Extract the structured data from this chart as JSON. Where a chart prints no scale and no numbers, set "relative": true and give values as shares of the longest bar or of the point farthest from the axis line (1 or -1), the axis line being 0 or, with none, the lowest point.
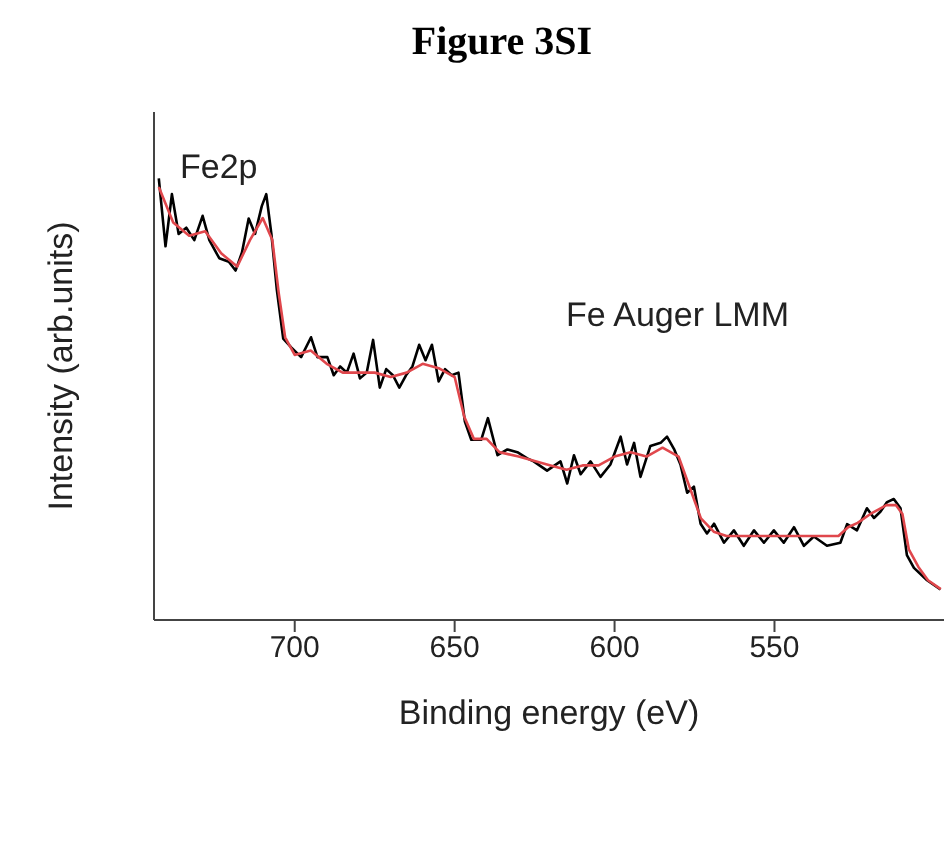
{
  "chart_data": {
    "type": "line",
    "title": "Figure 3SI",
    "xlabel": "Binding energy (eV)",
    "ylabel": "Intensity (arb.units)",
    "relative": true,
    "xlim": [
      744,
      497
    ],
    "xticks": [
      700,
      650,
      600,
      550
    ],
    "grid": false,
    "legend": false,
    "marker": "none",
    "line_style": "solid",
    "annotations": [
      "Fe2p",
      "Fe Auger LMM"
    ],
    "series": [
      {
        "color": "#000000",
        "x": [
          742.5,
          740.4,
          738.4,
          736.3,
          733.9,
          731.4,
          728.8,
          726.7,
          723.6,
          720.6,
          718.5,
          716.5,
          714.4,
          712.4,
          710.3,
          708.9,
          707.3,
          705.6,
          703.6,
          701.1,
          698,
          694.9,
          692.9,
          689.8,
          687.8,
          685.8,
          683.7,
          681.6,
          679.6,
          677.5,
          675.5,
          673.4,
          671.4,
          669.3,
          667.3,
          665.2,
          663.2,
          661.1,
          659.1,
          657.1,
          655,
          653,
          650.9,
          648.8,
          646.8,
          644.8,
          641.7,
          639.6,
          636.6,
          633.5,
          630.4,
          627.3,
          625.3,
          621.1,
          616.9,
          614.8,
          612.7,
          610.6,
          607.5,
          604.4,
          601.3,
          598.1,
          596.1,
          593.9,
          591.9,
          588.8,
          585.6,
          583.6,
          581.4,
          579.4,
          577.3,
          575.2,
          573.1,
          571.1,
          568.9,
          565.8,
          562.7,
          559.6,
          556.4,
          553.3,
          550.2,
          547.1,
          543.9,
          540.8,
          537.7,
          533.6,
          529.4,
          527.3,
          524.2,
          521.1,
          518.9,
          516.9,
          514.8,
          512.7,
          510.6,
          508.6,
          506.4,
          502.3,
          498.1
        ],
        "values": [
          1,
          0.846,
          0.964,
          0.874,
          0.888,
          0.86,
          0.915,
          0.86,
          0.819,
          0.811,
          0.791,
          0.832,
          0.909,
          0.874,
          0.937,
          0.964,
          0.874,
          0.748,
          0.637,
          0.617,
          0.595,
          0.64,
          0.595,
          0.595,
          0.554,
          0.574,
          0.56,
          0.603,
          0.547,
          0.56,
          0.634,
          0.526,
          0.568,
          0.554,
          0.526,
          0.554,
          0.574,
          0.623,
          0.588,
          0.623,
          0.54,
          0.568,
          0.554,
          0.56,
          0.449,
          0.408,
          0.408,
          0.457,
          0.373,
          0.386,
          0.38,
          0.366,
          0.359,
          0.338,
          0.359,
          0.309,
          0.373,
          0.33,
          0.359,
          0.324,
          0.352,
          0.415,
          0.352,
          0.401,
          0.324,
          0.394,
          0.401,
          0.415,
          0.387,
          0.352,
          0.288,
          0.302,
          0.218,
          0.196,
          0.218,
          0.175,
          0.203,
          0.168,
          0.203,
          0.175,
          0.203,
          0.175,
          0.21,
          0.168,
          0.189,
          0.168,
          0.175,
          0.217,
          0.203,
          0.253,
          0.231,
          0.245,
          0.267,
          0.274,
          0.253,
          0.147,
          0.118,
          0.09,
          0.069
        ]
      },
      {
        "color": "#e0474c",
        "x": [
          742.5,
          738,
          733,
          728,
          723,
          718,
          714,
          710,
          707,
          705,
          703,
          700,
          695,
          690,
          685,
          680,
          675,
          670,
          665,
          660,
          655,
          650,
          647,
          644,
          640,
          636,
          630,
          625,
          620,
          615,
          610,
          605,
          600,
          595,
          590,
          585,
          580,
          577,
          573,
          569,
          565,
          560,
          555,
          550,
          545,
          540,
          535,
          530,
          527,
          524,
          520,
          515,
          512,
          510,
          508,
          505,
          502,
          498
        ],
        "values": [
          0.98,
          0.9,
          0.87,
          0.88,
          0.83,
          0.8,
          0.86,
          0.91,
          0.86,
          0.74,
          0.64,
          0.6,
          0.61,
          0.58,
          0.56,
          0.56,
          0.56,
          0.55,
          0.56,
          0.58,
          0.57,
          0.55,
          0.46,
          0.41,
          0.41,
          0.38,
          0.37,
          0.36,
          0.35,
          0.34,
          0.35,
          0.35,
          0.37,
          0.38,
          0.37,
          0.39,
          0.37,
          0.31,
          0.23,
          0.2,
          0.19,
          0.19,
          0.19,
          0.19,
          0.19,
          0.19,
          0.19,
          0.19,
          0.21,
          0.22,
          0.24,
          0.26,
          0.26,
          0.24,
          0.16,
          0.12,
          0.09,
          0.07
        ]
      }
    ]
  }
}
